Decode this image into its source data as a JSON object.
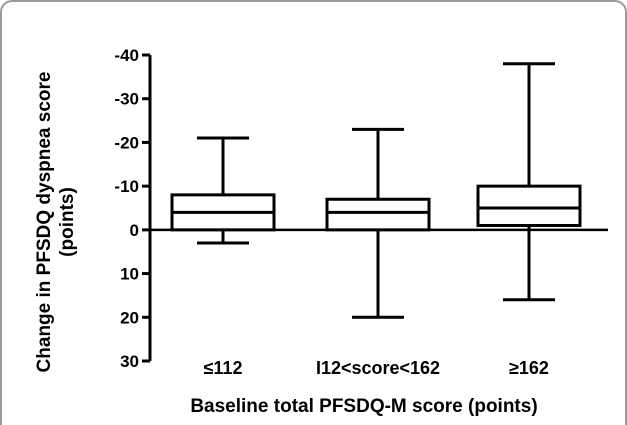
{
  "chart_data": {
    "type": "box",
    "title": "",
    "xlabel": "Baseline total PFSDQ-M score (points)",
    "ylabel_lines": [
      "Change in PFSDQ dyspnea score",
      "(points)"
    ],
    "y_tick_labels": [
      "-40",
      "-30",
      "-20",
      "-10",
      "0",
      "10",
      "20",
      "30"
    ],
    "y_ticks": [
      -40,
      -30,
      -20,
      -10,
      0,
      10,
      20,
      30
    ],
    "ylim": [
      -40,
      30
    ],
    "y_inverted": true,
    "categories": [
      "≤112",
      "I12<score<162",
      "≥162"
    ],
    "boxes": [
      {
        "category": "≤112",
        "whisker_low": -21,
        "q1": -8,
        "median": -4,
        "q3": 0,
        "whisker_high": 3
      },
      {
        "category": "I12<score<162",
        "whisker_low": -23,
        "q1": -7,
        "median": -4,
        "q3": 0,
        "whisker_high": 20
      },
      {
        "category": "≥162",
        "whisker_low": -38,
        "q1": -10,
        "median": -5,
        "q3": -1,
        "whisker_high": 16
      }
    ]
  }
}
